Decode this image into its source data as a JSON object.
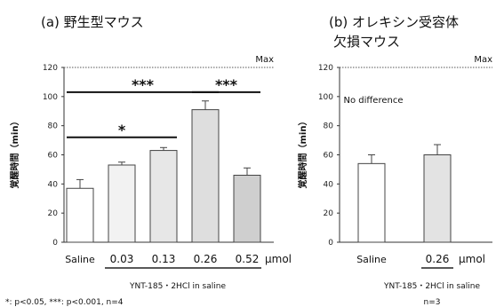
{
  "chart_data": [
    {
      "type": "bar",
      "title": "(a) 野生型マウス",
      "ylabel": "覚醒時間（min）",
      "ylim": [
        0,
        120
      ],
      "yticks": [
        0,
        20,
        40,
        60,
        80,
        100,
        120
      ],
      "categories": [
        "Saline",
        "0.03",
        "0.13",
        "0.26",
        "0.52"
      ],
      "unit": "μmol",
      "values": [
        37,
        53,
        63,
        91,
        46
      ],
      "errors": [
        6,
        2,
        2,
        6,
        5
      ],
      "colors": [
        "#ffffff",
        "#f2f2f2",
        "#e7e7e7",
        "#dedede",
        "#cfcfcf"
      ],
      "max_label": "Max",
      "max_value": 120,
      "treatment_label": "YNT-185・2HCl in saline",
      "significance": [
        {
          "from": "Saline",
          "to": "0.26",
          "label": "***",
          "y": 103
        },
        {
          "from": "Saline",
          "to": "0.13",
          "label": "*",
          "y": 72
        },
        {
          "from": "0.26",
          "to": "0.52",
          "label": "***",
          "y": 103
        }
      ],
      "footnote": "*: p<0.05, ***: p<0.001, n=4"
    },
    {
      "type": "bar",
      "title_lines": [
        "(b) オレキシン受容体",
        "欠損マウス"
      ],
      "ylabel": "覚醒時間（min）",
      "ylim": [
        0,
        120
      ],
      "yticks": [
        0,
        20,
        40,
        60,
        80,
        100,
        120
      ],
      "categories": [
        "Saline",
        "0.26"
      ],
      "unit": "μmol",
      "values": [
        54,
        60
      ],
      "errors": [
        6,
        7
      ],
      "colors": [
        "#ffffff",
        "#e3e3e3"
      ],
      "max_label": "Max",
      "max_value": 120,
      "annotation": "No difference",
      "treatment_label": "YNT-185・2HCl in saline",
      "footnote": "n=3"
    }
  ]
}
